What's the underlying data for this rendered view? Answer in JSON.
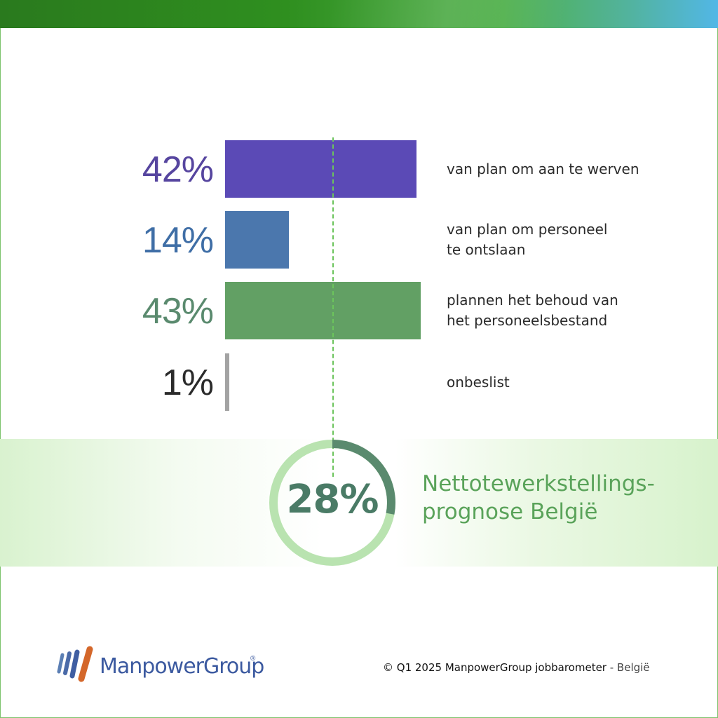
{
  "chart_data": {
    "type": "bar",
    "categories": [
      "van plan om aan te werven",
      "van plan om personeel te ontslaan",
      "plannen het behoud van het personeelsbestand",
      "onbeslist"
    ],
    "values": [
      42,
      14,
      43,
      1
    ],
    "value_labels": [
      "42%",
      "14%",
      "43%",
      "1%"
    ],
    "category_lines": [
      [
        "van plan om aan te werven"
      ],
      [
        "van plan om personeel",
        "te ontslaan"
      ],
      [
        "plannen het behoud van",
        "het personeelsbestand"
      ],
      [
        "onbeslist"
      ]
    ],
    "colors": [
      "#5b4ab6",
      "#4b77ad",
      "#62a064",
      "#a3a3a3"
    ],
    "label_colors": [
      "#56459f",
      "#3f6ea6",
      "#5a8a6e",
      "#2b2b2b"
    ],
    "ylim": [
      0,
      100
    ],
    "orientation": "horizontal"
  },
  "forecast": {
    "value": 28,
    "value_label": "28%",
    "title_line1": "Nettotewerkstellings-",
    "title_line2": "prognose België",
    "ring_color": "#b9e3b0",
    "arc_color": "#5a8a6e"
  },
  "logo": {
    "name": "ManpowerGroup",
    "reg_mark": "®"
  },
  "footer": {
    "main": "© Q1 2025 ManpowerGroup jobbarometer",
    "suffix": " - België"
  }
}
